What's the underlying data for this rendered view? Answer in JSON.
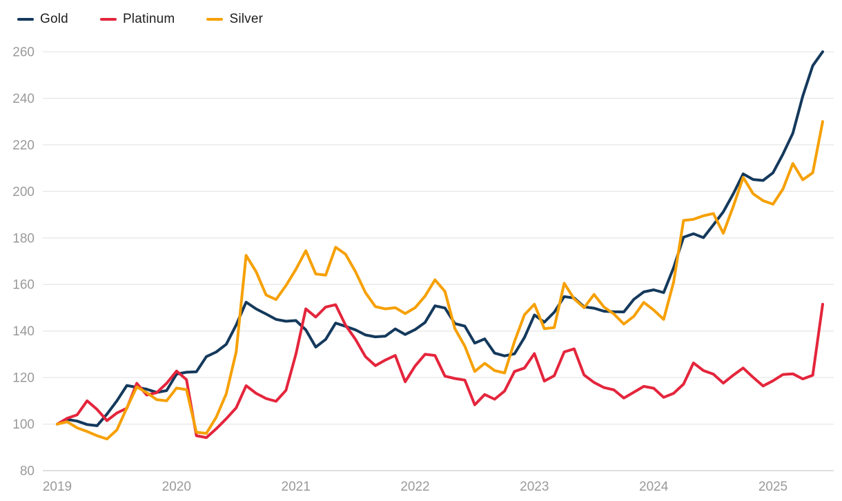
{
  "legend": {
    "items": [
      {
        "label": "Gold"
      },
      {
        "label": "Platinum"
      },
      {
        "label": "Silver"
      }
    ]
  },
  "colors": {
    "gold": "#14395c",
    "platinum": "#e4253c",
    "silver": "#f6a004",
    "gridline": "#e7e7e7",
    "axis_line": "#d4d4d4",
    "tick_text": "#9a9a9a",
    "legend_text": "#1e1e1e",
    "background": "#ffffff"
  },
  "chart_data": {
    "type": "line",
    "title": "",
    "xlabel": "",
    "ylabel": "",
    "x_frequency": "monthly",
    "x_start": "2019-01",
    "x_end": "2025-06",
    "x_tick_labels": [
      "2019",
      "2020",
      "2021",
      "2022",
      "2023",
      "2024",
      "2025"
    ],
    "y_ticks": [
      80,
      100,
      120,
      140,
      160,
      180,
      200,
      220,
      240,
      260
    ],
    "ylim": [
      80,
      260
    ],
    "grid": "horizontal",
    "legend_position": "top-left",
    "series": [
      {
        "name": "Gold",
        "color": "#14395c",
        "values": [
          100,
          102,
          101.3,
          99.8,
          99.3,
          104.3,
          110,
          116.6,
          115.8,
          115,
          113.6,
          114.4,
          121.5,
          122.3,
          122.5,
          129,
          131,
          134.3,
          142.6,
          152.4,
          149.5,
          147.3,
          145,
          144.2,
          144.5,
          140.5,
          133.1,
          136.4,
          143.4,
          142,
          140.5,
          138.3,
          137.5,
          137.8,
          140.9,
          138.5,
          140.6,
          143.7,
          150.8,
          149.9,
          143.2,
          142.1,
          134.8,
          136.6,
          130.5,
          129.3,
          130.2,
          137.2,
          146.9,
          143.8,
          148.1,
          154.8,
          154.2,
          150.4,
          149.8,
          148.5,
          148.3,
          148.2,
          153.6,
          156.8,
          157.7,
          156.5,
          167.2,
          180.3,
          181.8,
          180.1,
          185.6,
          191.2,
          198.9,
          207.5,
          205.1,
          204.7,
          208,
          216,
          225,
          241,
          254,
          260
        ]
      },
      {
        "name": "Platinum",
        "color": "#e4253c",
        "values": [
          100,
          102.5,
          104,
          110,
          106.3,
          101.5,
          104.8,
          106.8,
          117.5,
          112.5,
          113.5,
          117.5,
          122.8,
          119.1,
          95,
          94.2,
          98,
          102.3,
          107,
          116.5,
          113.2,
          111,
          109.8,
          114.5,
          130,
          149.5,
          146,
          150.3,
          151.3,
          142.5,
          136.4,
          129,
          125.1,
          127.5,
          129.5,
          118.2,
          125,
          130,
          129.5,
          120.6,
          119.6,
          118.9,
          108.3,
          112.7,
          110.7,
          114.2,
          122.6,
          124.1,
          130.3,
          118.5,
          120.8,
          131,
          132.3,
          121.1,
          117.9,
          115.7,
          114.7,
          111.2,
          113.7,
          116.2,
          115.4,
          111.5,
          113.2,
          117.2,
          126.3,
          123,
          121.5,
          117.6,
          121,
          124.1,
          120.1,
          116.4,
          118.6,
          121.3,
          121.6,
          119.4,
          121,
          151.5
        ]
      },
      {
        "name": "Silver",
        "color": "#f6a004",
        "values": [
          100,
          101,
          98.4,
          96.8,
          95,
          93.6,
          97.5,
          107,
          116,
          113.5,
          110.5,
          110,
          115.5,
          114.8,
          96.5,
          96,
          103,
          113,
          131,
          172.5,
          165.5,
          155.5,
          153.5,
          159.5,
          166.5,
          174.5,
          164.5,
          164,
          176,
          173,
          165.5,
          156.5,
          150.5,
          149.5,
          150,
          147.5,
          150,
          155,
          162,
          157,
          141,
          133.5,
          122.6,
          126.1,
          123,
          122,
          135.5,
          147,
          151.5,
          141,
          141.5,
          160.5,
          153.8,
          150,
          155.7,
          150.3,
          147.3,
          143,
          146.3,
          152.3,
          149,
          145,
          161,
          187.5,
          188,
          189.5,
          190.5,
          182,
          193.5,
          206,
          199,
          196,
          194.5,
          201,
          212,
          205,
          208,
          230
        ]
      }
    ]
  }
}
